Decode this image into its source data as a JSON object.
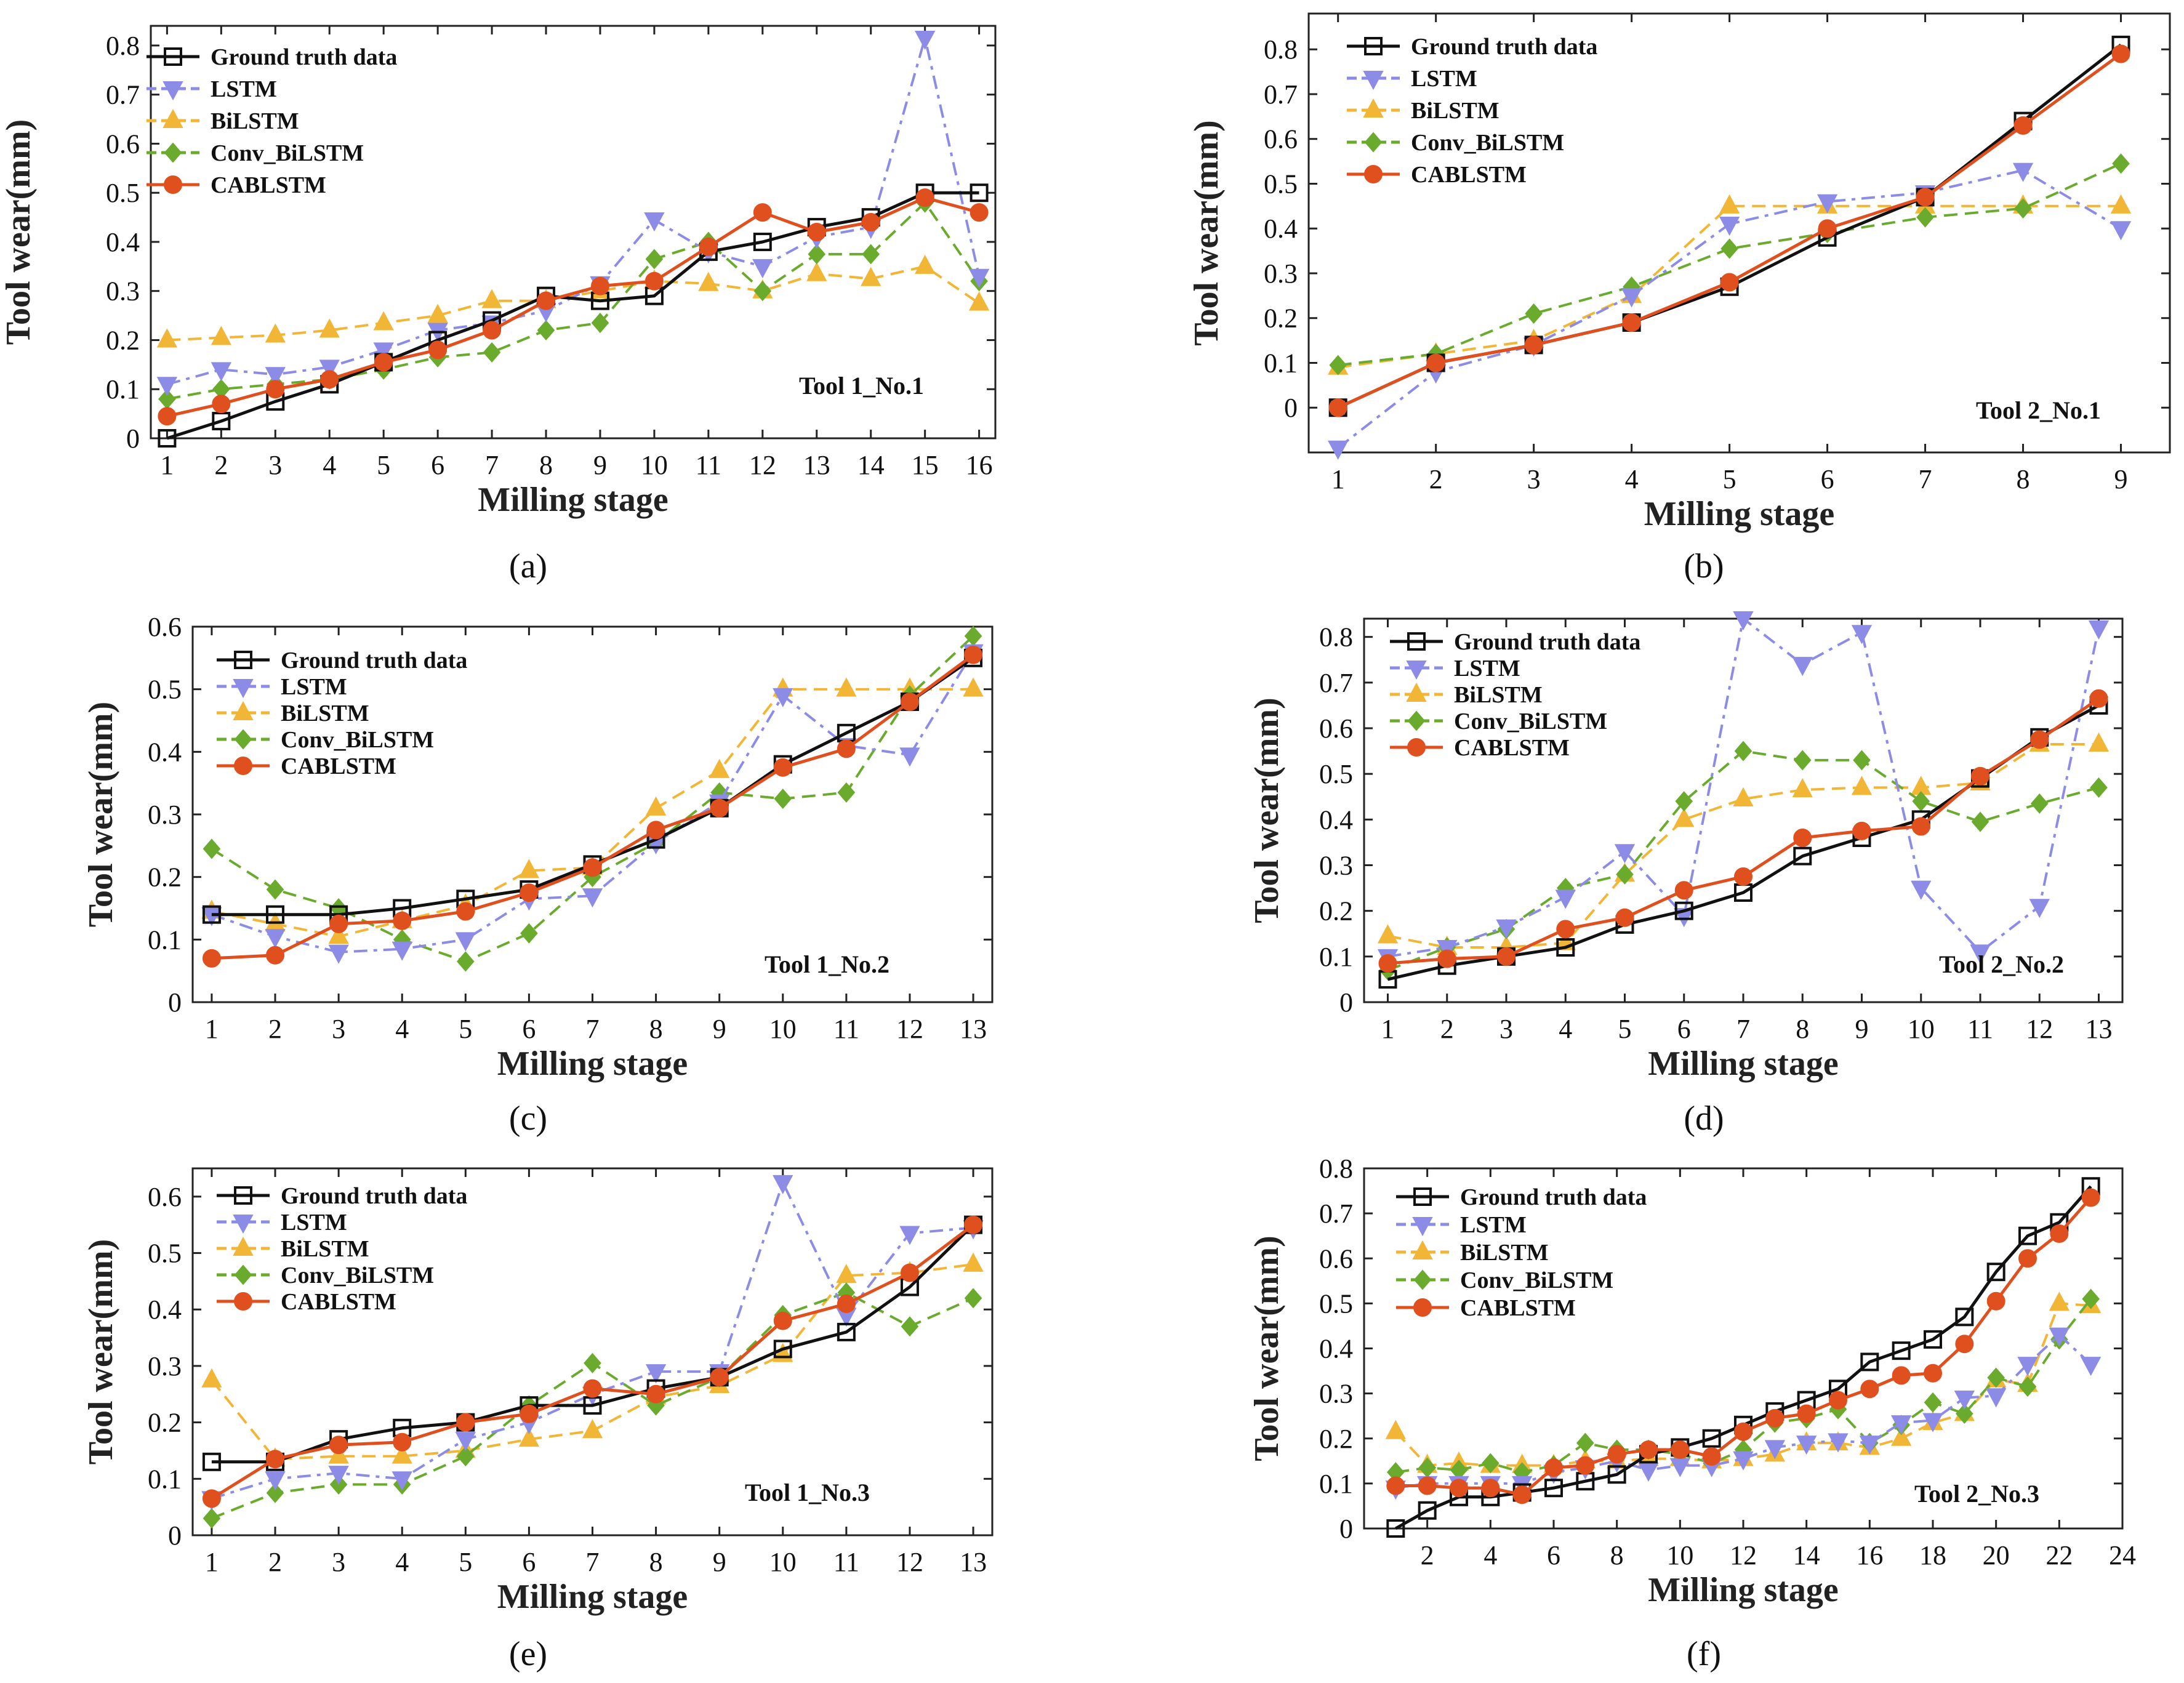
{
  "figure": {
    "series_names": [
      "Ground truth data",
      "LSTM",
      "BiLSTM",
      "Conv_BiLSTM",
      "CABLSTM"
    ],
    "series_colors": [
      "#111111",
      "#8c8ce6",
      "#f2b636",
      "#6aab2e",
      "#e0501e"
    ],
    "series_markers": [
      "square",
      "triangle-down",
      "triangle-up",
      "diamond",
      "circle"
    ]
  },
  "chart_data": [
    {
      "type": "line",
      "caption": "(a)",
      "title": "Tool 1_No.1",
      "xlabel": "Milling stage",
      "ylabel": "Tool wear(mm)",
      "xlim": [
        0.7,
        16.3
      ],
      "ylim": [
        0,
        0.84
      ],
      "xticks": [
        1,
        2,
        3,
        4,
        5,
        6,
        7,
        8,
        9,
        10,
        11,
        12,
        13,
        14,
        15,
        16
      ],
      "yticks": [
        0,
        0.1,
        0.2,
        0.3,
        0.4,
        0.5,
        0.6,
        0.7,
        0.8
      ],
      "x": [
        1,
        2,
        3,
        4,
        5,
        6,
        7,
        8,
        9,
        10,
        11,
        12,
        13,
        14,
        15,
        16
      ],
      "series": [
        {
          "name": "Ground truth data",
          "values": [
            0,
            0.035,
            0.075,
            0.11,
            0.155,
            0.2,
            0.24,
            0.29,
            0.28,
            0.29,
            0.38,
            0.4,
            0.43,
            0.45,
            0.5,
            0.5
          ]
        },
        {
          "name": "LSTM",
          "values": [
            0.11,
            0.14,
            0.13,
            0.145,
            0.18,
            0.22,
            0.235,
            0.26,
            0.315,
            0.445,
            0.38,
            0.35,
            0.41,
            0.43,
            0.815,
            0.33
          ]
        },
        {
          "name": "BiLSTM",
          "values": [
            0.2,
            0.205,
            0.21,
            0.22,
            0.235,
            0.25,
            0.28,
            0.28,
            0.3,
            0.32,
            0.315,
            0.3,
            0.335,
            0.325,
            0.35,
            0.275
          ]
        },
        {
          "name": "Conv_BiLSTM",
          "values": [
            0.08,
            0.1,
            0.11,
            0.12,
            0.14,
            0.165,
            0.175,
            0.22,
            0.235,
            0.365,
            0.4,
            0.3,
            0.375,
            0.375,
            0.48,
            0.32
          ]
        },
        {
          "name": "CABLSTM",
          "values": [
            0.045,
            0.07,
            0.1,
            0.12,
            0.155,
            0.18,
            0.22,
            0.28,
            0.31,
            0.32,
            0.39,
            0.46,
            0.42,
            0.44,
            0.49,
            0.46
          ]
        }
      ]
    },
    {
      "type": "line",
      "caption": "(b)",
      "title": "Tool 2_No.1",
      "xlabel": "Milling stage",
      "ylabel": "Tool wear(mm)",
      "xlim": [
        0.7,
        9.5
      ],
      "ylim": [
        -0.1,
        0.88
      ],
      "xticks": [
        1,
        2,
        3,
        4,
        5,
        6,
        7,
        8,
        9
      ],
      "yticks": [
        0,
        0.1,
        0.2,
        0.3,
        0.4,
        0.5,
        0.6,
        0.7,
        0.8
      ],
      "x": [
        1,
        2,
        3,
        4,
        5,
        6,
        7,
        8,
        9
      ],
      "series": [
        {
          "name": "Ground truth data",
          "values": [
            0,
            0.1,
            0.14,
            0.19,
            0.27,
            0.38,
            0.47,
            0.64,
            0.81
          ]
        },
        {
          "name": "LSTM",
          "values": [
            -0.09,
            0.08,
            0.14,
            0.25,
            0.41,
            0.46,
            0.48,
            0.53,
            0.4
          ]
        },
        {
          "name": "BiLSTM",
          "values": [
            0.09,
            0.12,
            0.15,
            0.25,
            0.45,
            0.45,
            0.45,
            0.45,
            0.45
          ]
        },
        {
          "name": "Conv_BiLSTM",
          "values": [
            0.095,
            0.12,
            0.21,
            0.27,
            0.355,
            0.39,
            0.425,
            0.445,
            0.545
          ]
        },
        {
          "name": "CABLSTM",
          "values": [
            0,
            0.1,
            0.14,
            0.19,
            0.28,
            0.4,
            0.47,
            0.63,
            0.79
          ]
        }
      ]
    },
    {
      "type": "line",
      "caption": "(c)",
      "title": "Tool 1_No.2",
      "xlabel": "Milling stage",
      "ylabel": "Tool wear(mm)",
      "xlim": [
        0.7,
        13.3
      ],
      "ylim": [
        0,
        0.6
      ],
      "xticks": [
        1,
        2,
        3,
        4,
        5,
        6,
        7,
        8,
        9,
        10,
        11,
        12,
        13
      ],
      "yticks": [
        0,
        0.1,
        0.2,
        0.3,
        0.4,
        0.5,
        0.6
      ],
      "x": [
        1,
        2,
        3,
        4,
        5,
        6,
        7,
        8,
        9,
        10,
        11,
        12,
        13
      ],
      "series": [
        {
          "name": "Ground truth data",
          "values": [
            0.14,
            0.14,
            0.14,
            0.15,
            0.165,
            0.18,
            0.22,
            0.26,
            0.31,
            0.38,
            0.43,
            0.48,
            0.55
          ]
        },
        {
          "name": "LSTM",
          "values": [
            0.14,
            0.105,
            0.08,
            0.085,
            0.1,
            0.165,
            0.17,
            0.255,
            0.32,
            0.49,
            0.41,
            0.395,
            0.56
          ]
        },
        {
          "name": "BiLSTM",
          "values": [
            0.145,
            0.125,
            0.105,
            0.13,
            0.155,
            0.21,
            0.215,
            0.31,
            0.37,
            0.5,
            0.5,
            0.5,
            0.5
          ]
        },
        {
          "name": "Conv_BiLSTM",
          "values": [
            0.245,
            0.18,
            0.15,
            0.1,
            0.065,
            0.11,
            0.2,
            0.255,
            0.335,
            0.325,
            0.335,
            0.49,
            0.585
          ]
        },
        {
          "name": "CABLSTM",
          "values": [
            0.07,
            0.075,
            0.125,
            0.13,
            0.145,
            0.175,
            0.215,
            0.275,
            0.31,
            0.375,
            0.405,
            0.48,
            0.555
          ]
        }
      ]
    },
    {
      "type": "line",
      "caption": "(d)",
      "title": "Tool 2_No.2",
      "xlabel": "Milling stage",
      "ylabel": "Tool wear(mm)",
      "xlim": [
        0.6,
        13.4
      ],
      "ylim": [
        0,
        0.84
      ],
      "xticks": [
        1,
        2,
        3,
        4,
        5,
        6,
        7,
        8,
        9,
        10,
        11,
        12,
        13
      ],
      "yticks": [
        0,
        0.1,
        0.2,
        0.3,
        0.4,
        0.5,
        0.6,
        0.7,
        0.8
      ],
      "x": [
        1,
        2,
        3,
        4,
        5,
        6,
        7,
        8,
        9,
        10,
        11,
        12,
        13
      ],
      "series": [
        {
          "name": "Ground truth data",
          "values": [
            0.05,
            0.08,
            0.1,
            0.12,
            0.17,
            0.2,
            0.24,
            0.32,
            0.36,
            0.4,
            0.49,
            0.58,
            0.65
          ]
        },
        {
          "name": "LSTM",
          "values": [
            0.1,
            0.12,
            0.165,
            0.23,
            0.33,
            0.19,
            0.84,
            0.74,
            0.81,
            0.25,
            0.11,
            0.21,
            0.82
          ]
        },
        {
          "name": "BiLSTM",
          "values": [
            0.145,
            0.12,
            0.12,
            0.13,
            0.28,
            0.4,
            0.445,
            0.465,
            0.47,
            0.47,
            0.48,
            0.565,
            0.565
          ]
        },
        {
          "name": "Conv_BiLSTM",
          "values": [
            0.07,
            0.12,
            0.16,
            0.25,
            0.28,
            0.44,
            0.55,
            0.53,
            0.53,
            0.44,
            0.395,
            0.435,
            0.47
          ]
        },
        {
          "name": "CABLSTM",
          "values": [
            0.085,
            0.095,
            0.1,
            0.16,
            0.185,
            0.245,
            0.275,
            0.36,
            0.375,
            0.385,
            0.495,
            0.575,
            0.665
          ]
        }
      ]
    },
    {
      "type": "line",
      "caption": "(e)",
      "title": "Tool 1_No.3",
      "xlabel": "Milling stage",
      "ylabel": "Tool wear(mm)",
      "xlim": [
        0.7,
        13.3
      ],
      "ylim": [
        0,
        0.65
      ],
      "xticks": [
        1,
        2,
        3,
        4,
        5,
        6,
        7,
        8,
        9,
        10,
        11,
        12,
        13
      ],
      "yticks": [
        0,
        0.1,
        0.2,
        0.3,
        0.4,
        0.5,
        0.6
      ],
      "x": [
        1,
        2,
        3,
        4,
        5,
        6,
        7,
        8,
        9,
        10,
        11,
        12,
        13
      ],
      "series": [
        {
          "name": "Ground truth data",
          "values": [
            0.13,
            0.13,
            0.17,
            0.19,
            0.2,
            0.23,
            0.23,
            0.26,
            0.28,
            0.33,
            0.36,
            0.44,
            0.55
          ]
        },
        {
          "name": "LSTM",
          "values": [
            0.065,
            0.1,
            0.11,
            0.1,
            0.17,
            0.2,
            0.25,
            0.29,
            0.29,
            0.625,
            0.39,
            0.535,
            0.545
          ]
        },
        {
          "name": "BiLSTM",
          "values": [
            0.275,
            0.135,
            0.14,
            0.14,
            0.15,
            0.17,
            0.185,
            0.245,
            0.265,
            0.32,
            0.46,
            0.465,
            0.48
          ]
        },
        {
          "name": "Conv_BiLSTM",
          "values": [
            0.03,
            0.075,
            0.09,
            0.09,
            0.14,
            0.23,
            0.305,
            0.23,
            0.28,
            0.39,
            0.43,
            0.37,
            0.42
          ]
        },
        {
          "name": "CABLSTM",
          "values": [
            0.065,
            0.135,
            0.16,
            0.165,
            0.2,
            0.215,
            0.26,
            0.25,
            0.28,
            0.38,
            0.41,
            0.465,
            0.55
          ]
        }
      ]
    },
    {
      "type": "line",
      "caption": "(f)",
      "title": "Tool 2_No.3",
      "xlabel": "Milling stage",
      "ylabel": "Tool wear(mm)",
      "xlim": [
        0.0,
        24.0
      ],
      "ylim": [
        0,
        0.8
      ],
      "xticks": [
        2,
        4,
        6,
        8,
        10,
        12,
        14,
        16,
        18,
        20,
        22,
        24
      ],
      "yticks": [
        0,
        0.1,
        0.2,
        0.3,
        0.4,
        0.5,
        0.6,
        0.7,
        0.8
      ],
      "x": [
        1,
        2,
        3,
        4,
        5,
        6,
        7,
        8,
        9,
        10,
        11,
        12,
        13,
        14,
        15,
        16,
        17,
        18,
        19,
        20,
        21,
        22,
        23
      ],
      "series": [
        {
          "name": "Ground truth data",
          "values": [
            0,
            0.04,
            0.07,
            0.07,
            0.08,
            0.09,
            0.105,
            0.12,
            0.165,
            0.18,
            0.2,
            0.23,
            0.26,
            0.285,
            0.31,
            0.37,
            0.395,
            0.42,
            0.47,
            0.57,
            0.65,
            0.68,
            0.76
          ]
        },
        {
          "name": "LSTM",
          "values": [
            0.09,
            0.1,
            0.1,
            0.1,
            0.1,
            0.125,
            0.135,
            0.15,
            0.13,
            0.14,
            0.14,
            0.155,
            0.18,
            0.19,
            0.195,
            0.19,
            0.235,
            0.24,
            0.29,
            0.295,
            0.365,
            0.43,
            0.365
          ]
        },
        {
          "name": "BiLSTM",
          "values": [
            0.215,
            0.14,
            0.145,
            0.14,
            0.14,
            0.14,
            0.15,
            0.15,
            0.155,
            0.155,
            0.15,
            0.155,
            0.165,
            0.19,
            0.19,
            0.18,
            0.2,
            0.235,
            0.255,
            0.33,
            0.32,
            0.5,
            0.495
          ]
        },
        {
          "name": "Conv_BiLSTM",
          "values": [
            0.125,
            0.135,
            0.13,
            0.145,
            0.125,
            0.14,
            0.19,
            0.175,
            0.175,
            0.165,
            0.145,
            0.175,
            0.235,
            0.245,
            0.265,
            0.19,
            0.23,
            0.28,
            0.255,
            0.335,
            0.315,
            0.42,
            0.51
          ]
        },
        {
          "name": "CABLSTM",
          "values": [
            0.095,
            0.095,
            0.09,
            0.09,
            0.075,
            0.135,
            0.14,
            0.165,
            0.175,
            0.175,
            0.16,
            0.215,
            0.245,
            0.255,
            0.285,
            0.31,
            0.34,
            0.345,
            0.41,
            0.505,
            0.6,
            0.655,
            0.735
          ]
        }
      ]
    }
  ]
}
